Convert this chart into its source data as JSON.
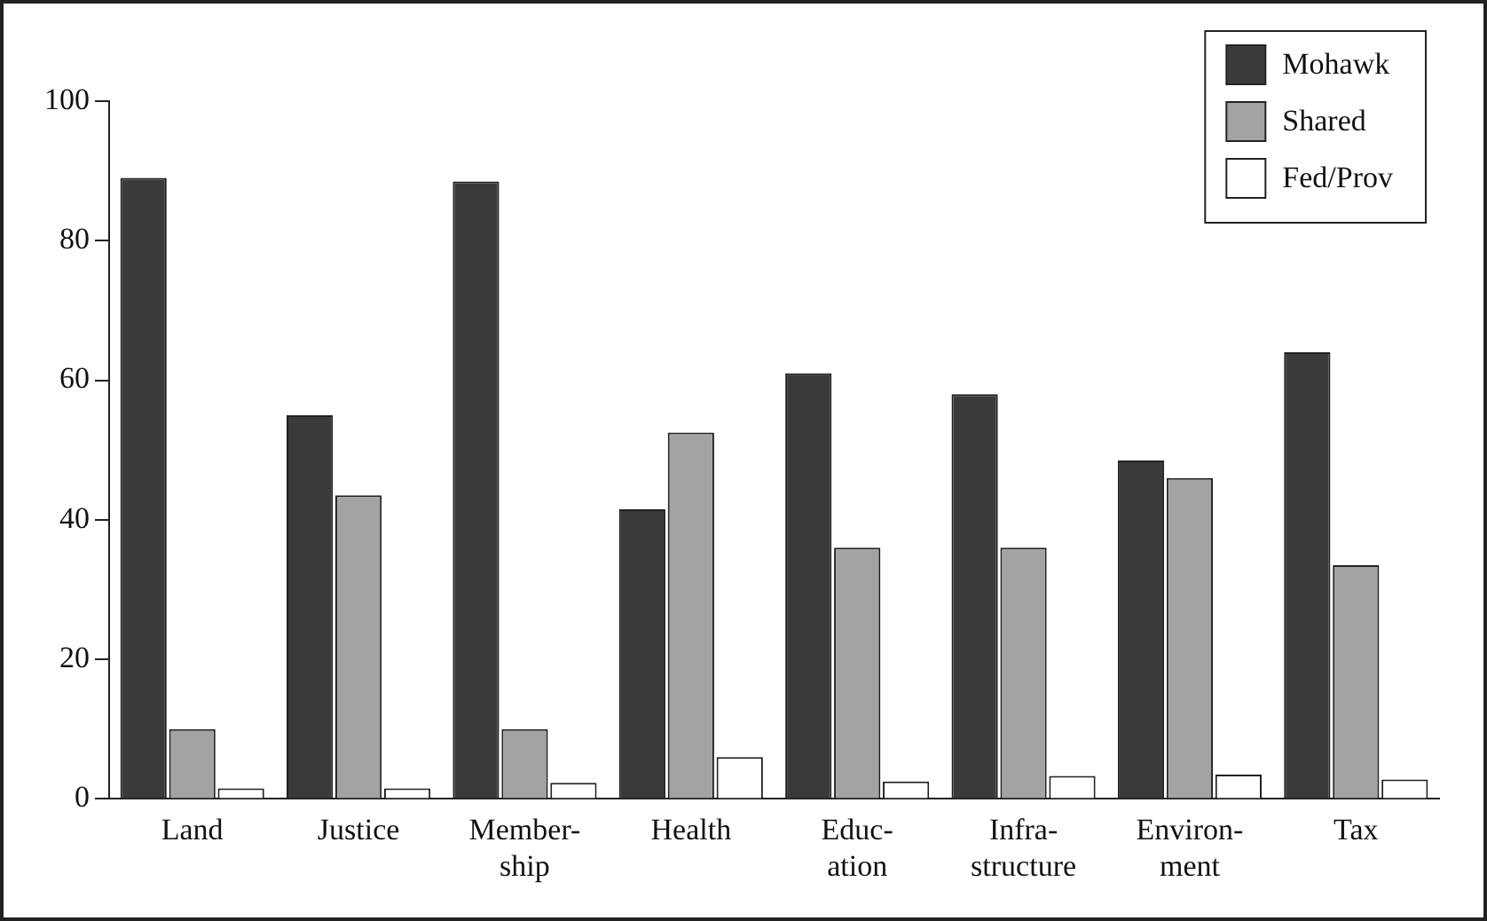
{
  "chart_data": {
    "type": "bar",
    "categories": [
      "Land",
      "Justice",
      "Member-\nship",
      "Health",
      "Educ-\nation",
      "Infra-\nstructure",
      "Environ-\nment",
      "Tax"
    ],
    "series": [
      {
        "name": "Mohawk",
        "color": "#3a3a3a",
        "values": [
          89,
          55,
          88.5,
          41.5,
          61,
          58,
          48.5,
          64
        ]
      },
      {
        "name": "Shared",
        "color": "#a3a3a3",
        "values": [
          10,
          43.5,
          10,
          52.5,
          36,
          36,
          46,
          33.5
        ]
      },
      {
        "name": "Fed/Prov",
        "color": "#ffffff",
        "values": [
          1.5,
          1.5,
          2.3,
          6,
          2.5,
          3.3,
          3.5,
          2.8
        ]
      }
    ],
    "ylim": [
      0,
      100
    ],
    "yticks": [
      0,
      20,
      40,
      60,
      80,
      100
    ],
    "grid": false,
    "legend": "top right"
  }
}
